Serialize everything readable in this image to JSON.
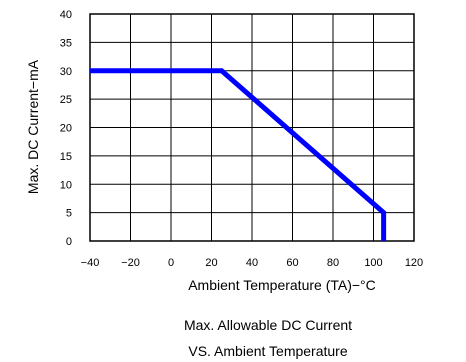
{
  "chart_data": {
    "type": "line",
    "xlabel": "Ambient Temperature (TA)−°C",
    "ylabel": "Max. DC Current−mA",
    "xlim": [
      -40,
      120
    ],
    "ylim": [
      0,
      40
    ],
    "xticks": [
      -40,
      -20,
      0,
      20,
      40,
      60,
      80,
      100,
      120
    ],
    "yticks": [
      0,
      5,
      10,
      15,
      20,
      25,
      30,
      35,
      40
    ],
    "grid": true,
    "series": [
      {
        "color": "#0000ff",
        "x": [
          -40,
          25,
          105,
          105
        ],
        "y": [
          30,
          30,
          5,
          0
        ]
      }
    ],
    "caption_lines": [
      "Max. Allowable DC Current",
      "VS. Ambient Temperature"
    ]
  }
}
